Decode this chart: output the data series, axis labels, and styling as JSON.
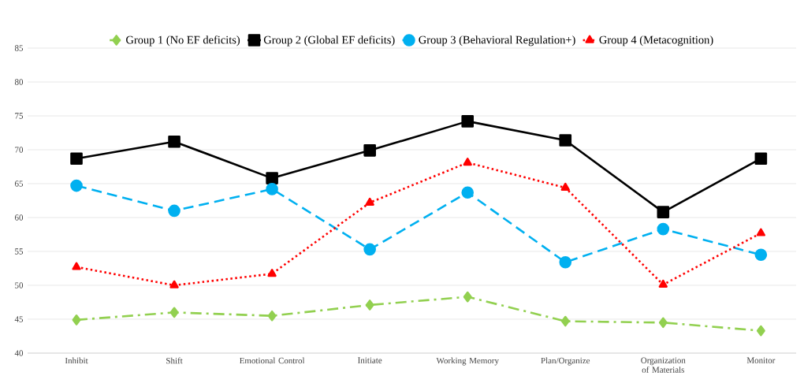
{
  "chart_data": {
    "type": "line",
    "categories": [
      "Inhibit",
      "Shift",
      "Emotional Control",
      "Initiate",
      "Working Memory",
      "Plan/Organize",
      "Organization of Materials",
      "Monitor"
    ],
    "series": [
      {
        "name": "Group 1 (No EF deficits)",
        "color": "#92d050",
        "marker": "diamond",
        "line_style": "dashdot",
        "values": [
          44.9,
          46.0,
          45.5,
          47.1,
          48.3,
          44.7,
          44.5,
          43.3
        ]
      },
      {
        "name": "Group 2 (Global EF deficits)",
        "color": "#000000",
        "marker": "square",
        "line_style": "solid",
        "values": [
          68.7,
          71.2,
          65.8,
          69.9,
          74.2,
          71.4,
          60.8,
          68.7
        ]
      },
      {
        "name": "Group 3 (Behavioral Regulation+)",
        "color": "#00b0f0",
        "marker": "circle",
        "line_style": "dashed",
        "values": [
          64.7,
          61.0,
          64.2,
          55.3,
          63.7,
          53.4,
          58.3,
          54.5
        ]
      },
      {
        "name": "Group 4 (Metacognition)",
        "color": "#ff0000",
        "marker": "triangle",
        "line_style": "dotted",
        "values": [
          52.7,
          50.0,
          51.7,
          62.2,
          68.1,
          64.4,
          50.1,
          57.7
        ]
      }
    ],
    "ylim": [
      40,
      85
    ],
    "yticks": [
      40,
      45,
      50,
      55,
      60,
      65,
      70,
      75,
      80,
      85
    ],
    "grid": "y",
    "legend": "top"
  }
}
